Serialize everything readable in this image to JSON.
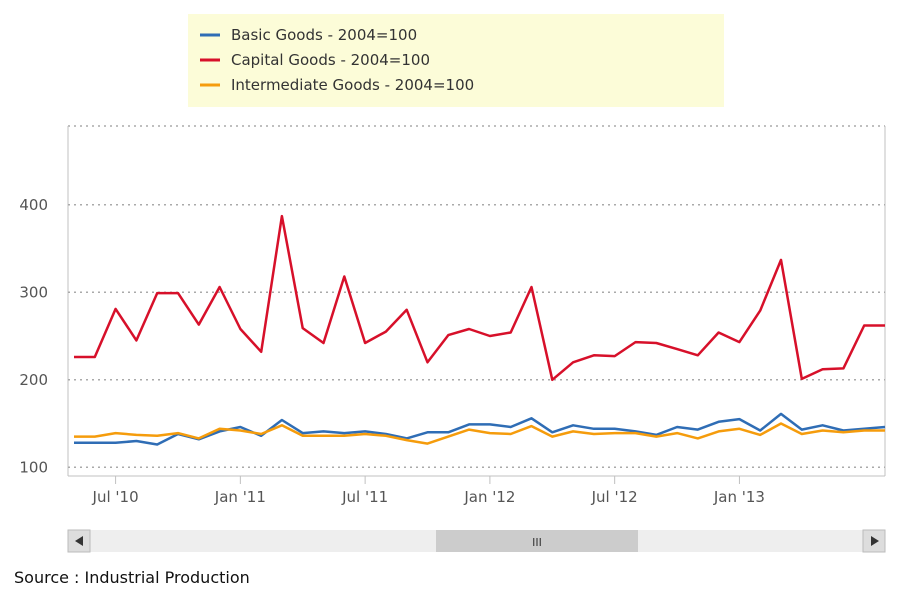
{
  "source": "Source : Industrial Production",
  "colors": {
    "basic": "#2f6db5",
    "capital": "#d7102a",
    "intermediate": "#f59c0c",
    "legend_bg": "#fcfcd8",
    "grid": "#aaaaaa",
    "scrollbar_track": "#eeeeee",
    "scrollbar_thumb": "#cccccc"
  },
  "scrollbar": {
    "left_icon": "arrow-left-icon",
    "right_icon": "arrow-right-icon",
    "thumb_icon": "grip-icon",
    "thumb_label": "III"
  },
  "chart_data": {
    "type": "line",
    "title": "",
    "xlabel": "",
    "ylabel": "",
    "ylim": [
      90,
      490
    ],
    "y_ticks": [
      100,
      200,
      300,
      400
    ],
    "grid": true,
    "legend_position": "top",
    "x_ticks": [
      {
        "date": "2010-07",
        "label": "Jul '10"
      },
      {
        "date": "2011-01",
        "label": "Jan '11"
      },
      {
        "date": "2011-07",
        "label": "Jul '11"
      },
      {
        "date": "2012-01",
        "label": "Jan '12"
      },
      {
        "date": "2012-07",
        "label": "Jul '12"
      },
      {
        "date": "2013-01",
        "label": "Jan '13"
      }
    ],
    "x": [
      "2010-05",
      "2010-06",
      "2010-07",
      "2010-08",
      "2010-09",
      "2010-10",
      "2010-11",
      "2010-12",
      "2011-01",
      "2011-02",
      "2011-03",
      "2011-04",
      "2011-05",
      "2011-06",
      "2011-07",
      "2011-08",
      "2011-09",
      "2011-10",
      "2011-11",
      "2011-12",
      "2012-01",
      "2012-02",
      "2012-03",
      "2012-04",
      "2012-05",
      "2012-06",
      "2012-07",
      "2012-08",
      "2012-09",
      "2012-10",
      "2012-11",
      "2012-12",
      "2013-01",
      "2013-02",
      "2013-03",
      "2013-04",
      "2013-05",
      "2013-06",
      "2013-07",
      "2013-08"
    ],
    "series": [
      {
        "name": "Basic Goods - 2004=100",
        "color_key": "basic",
        "values": [
          128,
          128,
          128,
          130,
          126,
          138,
          132,
          141,
          146,
          136,
          154,
          139,
          141,
          139,
          141,
          138,
          133,
          140,
          140,
          149,
          149,
          146,
          156,
          140,
          148,
          144,
          144,
          141,
          137,
          146,
          143,
          152,
          155,
          142,
          161,
          143,
          148,
          142,
          144,
          146
        ]
      },
      {
        "name": "Capital Goods - 2004=100",
        "color_key": "capital",
        "values": [
          226,
          226,
          281,
          245,
          299,
          299,
          263,
          306,
          258,
          232,
          387,
          259,
          242,
          318,
          242,
          255,
          280,
          220,
          251,
          258,
          250,
          254,
          306,
          200,
          220,
          228,
          227,
          243,
          242,
          235,
          228,
          254,
          243,
          279,
          337,
          201,
          212,
          213,
          262,
          262
        ]
      },
      {
        "name": "Intermediate Goods - 2004=100",
        "color_key": "intermediate",
        "values": [
          135,
          135,
          139,
          137,
          136,
          139,
          133,
          144,
          142,
          138,
          148,
          136,
          136,
          136,
          138,
          136,
          131,
          127,
          135,
          143,
          139,
          138,
          147,
          135,
          141,
          138,
          139,
          139,
          135,
          139,
          133,
          141,
          144,
          137,
          150,
          138,
          142,
          140,
          142,
          142
        ]
      }
    ]
  }
}
